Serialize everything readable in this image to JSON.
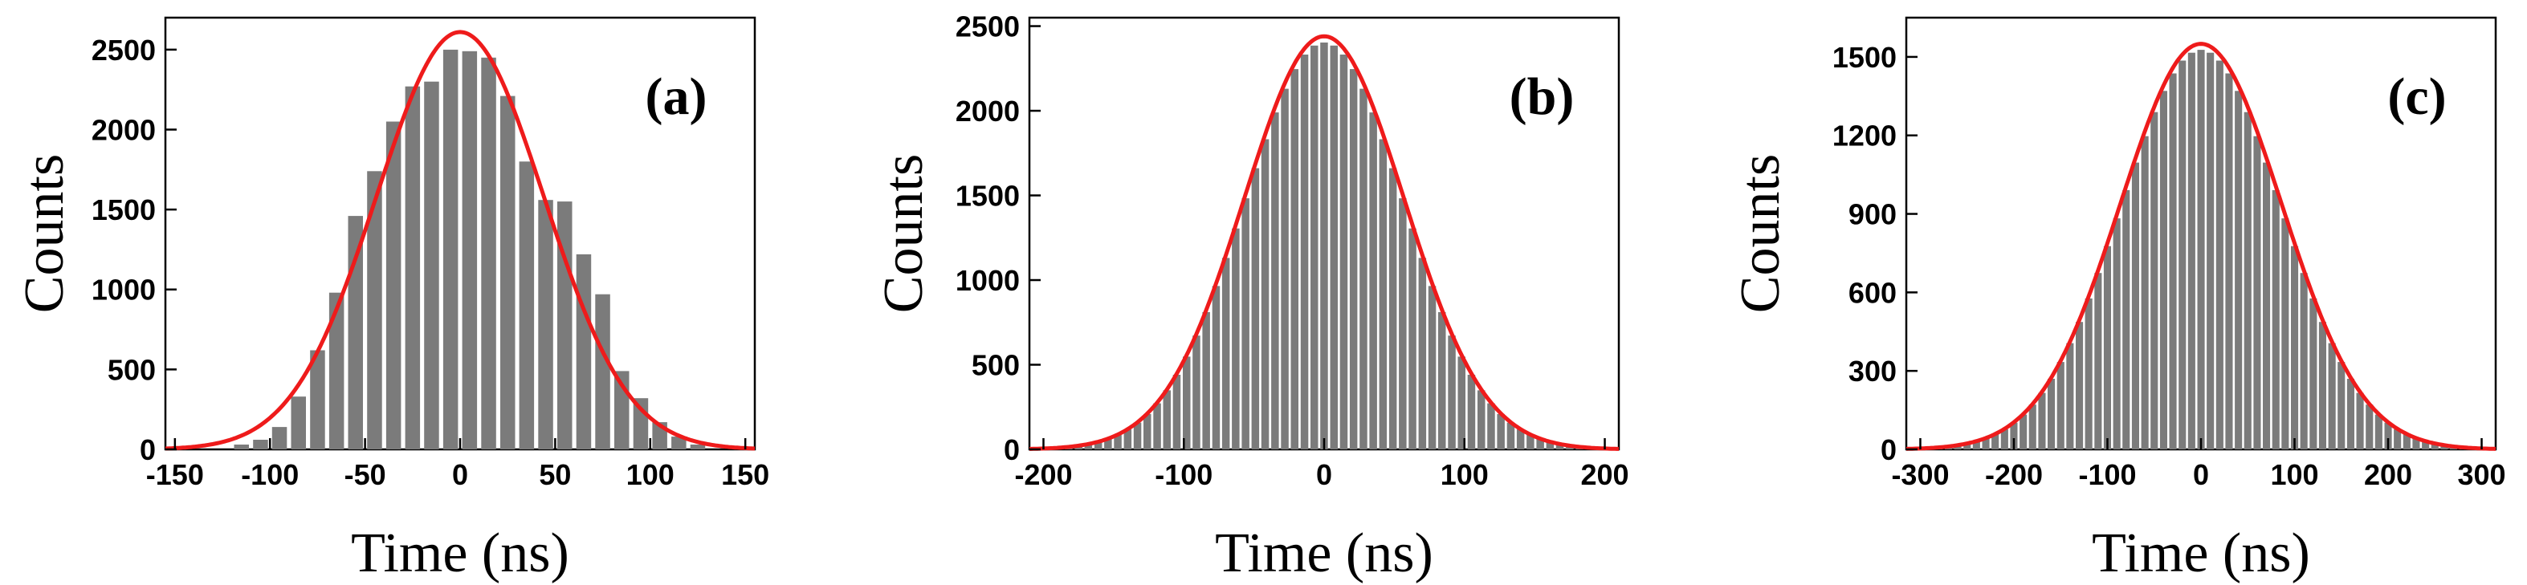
{
  "figure": {
    "background": "#ffffff",
    "bar_color": "#7b7b7b",
    "fit_color": "#ee1b1b"
  },
  "chart_data": [
    {
      "type": "bar",
      "panel_label": "(a)",
      "xlabel": "Time (ns)",
      "ylabel": "Counts",
      "xlim": [
        -155,
        155
      ],
      "ylim": [
        0,
        2700
      ],
      "x_ticks": [
        -150,
        -100,
        -50,
        0,
        50,
        100,
        150
      ],
      "y_ticks": [
        0,
        500,
        1000,
        1500,
        2000,
        2500
      ],
      "bin_width": 10,
      "x": [
        -115,
        -105,
        -95,
        -85,
        -75,
        -65,
        -55,
        -45,
        -35,
        -25,
        -15,
        -5,
        5,
        15,
        25,
        35,
        45,
        55,
        65,
        75,
        85,
        95,
        105,
        115,
        125
      ],
      "values": [
        30,
        60,
        140,
        330,
        620,
        980,
        1460,
        1740,
        2050,
        2270,
        2300,
        2500,
        2490,
        2450,
        2210,
        1800,
        1560,
        1550,
        1220,
        970,
        490,
        320,
        170,
        80,
        30
      ],
      "fit": {
        "type": "gaussian",
        "amplitude": 2610,
        "center": 0,
        "sigma": 44,
        "line_color": "#ee1b1b"
      }
    },
    {
      "type": "bar",
      "panel_label": "(b)",
      "xlabel": "Time (ns)",
      "ylabel": "Counts",
      "xlim": [
        -210,
        210
      ],
      "ylim": [
        0,
        2550
      ],
      "x_ticks": [
        -200,
        -100,
        0,
        100,
        200
      ],
      "y_ticks": [
        0,
        500,
        1000,
        1500,
        2000,
        2500
      ],
      "bin_width": 7,
      "fit": {
        "type": "gaussian",
        "amplitude": 2440,
        "center": 0,
        "sigma": 57,
        "line_color": "#ee1b1b"
      }
    },
    {
      "type": "bar",
      "panel_label": "(c)",
      "xlabel": "Time (ns)",
      "ylabel": "Counts",
      "xlim": [
        -315,
        315
      ],
      "ylim": [
        0,
        1650
      ],
      "x_ticks": [
        -300,
        -200,
        -100,
        0,
        100,
        200,
        300
      ],
      "y_ticks": [
        0,
        300,
        600,
        900,
        1200,
        1500
      ],
      "bin_width": 10,
      "fit": {
        "type": "gaussian",
        "amplitude": 1550,
        "center": 0,
        "sigma": 86,
        "line_color": "#ee1b1b"
      }
    }
  ]
}
